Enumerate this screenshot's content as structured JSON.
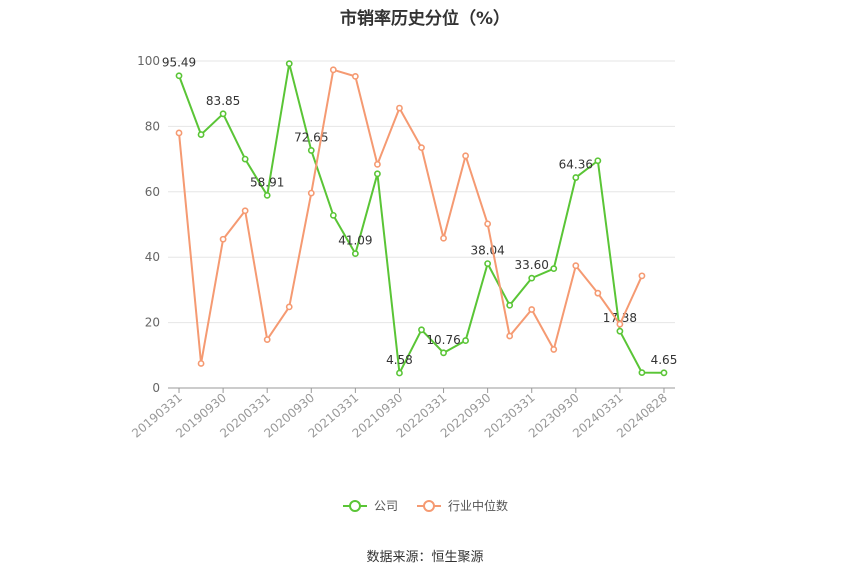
{
  "chart_data": {
    "type": "line",
    "title": "市销率历史分位（%）",
    "x_ticks": [
      "20190331",
      "20190930",
      "20200331",
      "20200930",
      "20210331",
      "20210930",
      "20220331",
      "20220930",
      "20230331",
      "20230930",
      "20240331",
      "20240828"
    ],
    "x": [
      "20190331",
      "20190630",
      "20190930",
      "20191231",
      "20200331",
      "20200630",
      "20200930",
      "20201231",
      "20210331",
      "20210630",
      "20210930",
      "20211231",
      "20220331",
      "20220630",
      "20220930",
      "20221231",
      "20230331",
      "20230630",
      "20230930",
      "20231231",
      "20240331",
      "20240630",
      "20240828"
    ],
    "ylim": [
      0,
      100
    ],
    "y_ticks": [
      0,
      20,
      40,
      60,
      80,
      100
    ],
    "grid": true,
    "legend_position": "bottom",
    "series": [
      {
        "name": "公司",
        "color": "#5ac536",
        "values": [
          95.49,
          77.5,
          83.85,
          70.0,
          58.91,
          99.2,
          72.65,
          52.8,
          41.09,
          65.5,
          4.58,
          17.8,
          10.76,
          14.5,
          38.04,
          25.3,
          33.6,
          36.5,
          64.36,
          69.5,
          17.38,
          4.7,
          4.65
        ],
        "labels": {
          "0": "95.49",
          "2": "83.85",
          "4": "58.91",
          "6": "72.65",
          "8": "41.09",
          "10": "4.58",
          "12": "10.76",
          "14": "38.04",
          "16": "33.60",
          "18": "64.36",
          "20": "17.38",
          "22": "4.65"
        }
      },
      {
        "name": "行业中位数",
        "color": "#f59a72",
        "values": [
          78.0,
          7.5,
          45.5,
          54.2,
          14.8,
          24.8,
          59.6,
          97.3,
          95.3,
          68.4,
          85.6,
          73.5,
          45.8,
          71.0,
          50.2,
          15.9,
          24.0,
          11.8,
          37.4,
          29.0,
          19.5,
          34.3,
          null
        ]
      }
    ]
  },
  "source_text": "数据来源：恒生聚源"
}
